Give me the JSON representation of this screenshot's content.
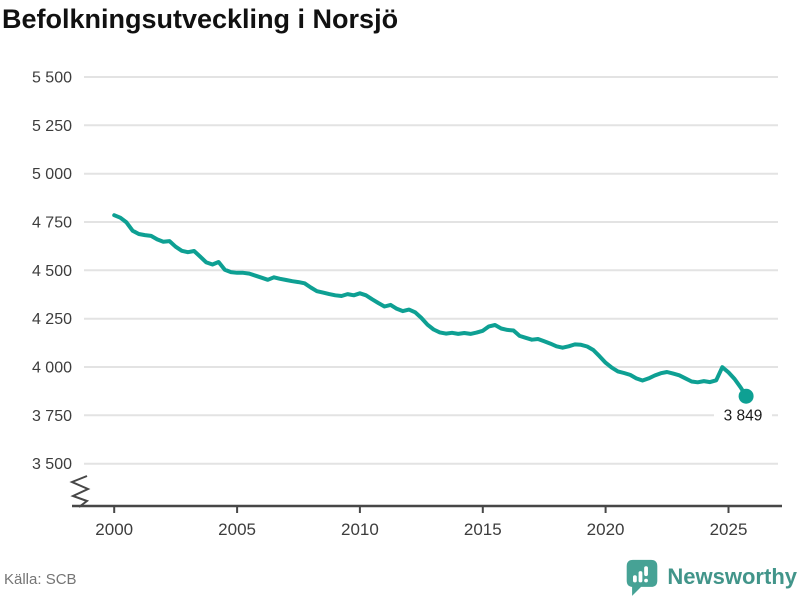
{
  "title": "Befolkningsutveckling i Norsjö",
  "source": {
    "label": "Källa: SCB"
  },
  "branding": {
    "name": "Newsworthy",
    "icon": "newsworthy-speech-bubble-bar-chart-icon"
  },
  "colors": {
    "line": "#0EA093",
    "dot": "#0EA093",
    "grid": "#E3E3E3",
    "axis": "#474747",
    "axis_text": "#3D3D3D",
    "title_text": "#111111",
    "annotation_text": "#1A1A1A",
    "source_text": "#757575",
    "logo": "#46A295",
    "logo_text": "#42958A"
  },
  "chart_data": {
    "type": "line",
    "title": "Befolkningsutveckling i Norsjö",
    "xlabel": "",
    "ylabel": "",
    "grid": "horizontal",
    "legend": "none",
    "axis_break": true,
    "xlim": [
      2000,
      2025.75
    ],
    "ylim": [
      3500,
      5500
    ],
    "end_label": "3 849",
    "end_value": 3849,
    "yticks": [
      {
        "value": 5500,
        "label": "5 500"
      },
      {
        "value": 5250,
        "label": "5 250"
      },
      {
        "value": 5000,
        "label": "5 000"
      },
      {
        "value": 4750,
        "label": "4 750"
      },
      {
        "value": 4500,
        "label": "4 500"
      },
      {
        "value": 4250,
        "label": "4 250"
      },
      {
        "value": 4000,
        "label": "4 000"
      },
      {
        "value": 3750,
        "label": "3 750"
      },
      {
        "value": 3500,
        "label": "3 500"
      }
    ],
    "xticks": [
      {
        "value": 2000,
        "label": "2000"
      },
      {
        "value": 2005,
        "label": "2005"
      },
      {
        "value": 2010,
        "label": "2010"
      },
      {
        "value": 2015,
        "label": "2015"
      },
      {
        "value": 2020,
        "label": "2020"
      },
      {
        "value": 2025,
        "label": "2025"
      }
    ],
    "series": [
      {
        "x": [
          2000.0,
          2000.25,
          2000.5,
          2000.75,
          2001.0,
          2001.25,
          2001.5,
          2001.75,
          2002.0,
          2002.25,
          2002.5,
          2002.75,
          2003.0,
          2003.25,
          2003.5,
          2003.75,
          2004.0,
          2004.25,
          2004.5,
          2004.75,
          2005.0,
          2005.25,
          2005.5,
          2005.75,
          2006.0,
          2006.25,
          2006.5,
          2006.75,
          2007.0,
          2007.25,
          2007.5,
          2007.75,
          2008.0,
          2008.25,
          2008.5,
          2008.75,
          2009.0,
          2009.25,
          2009.5,
          2009.75,
          2010.0,
          2010.25,
          2010.5,
          2010.75,
          2011.0,
          2011.25,
          2011.5,
          2011.75,
          2012.0,
          2012.25,
          2012.5,
          2012.75,
          2013.0,
          2013.25,
          2013.5,
          2013.75,
          2014.0,
          2014.25,
          2014.5,
          2014.75,
          2015.0,
          2015.25,
          2015.5,
          2015.75,
          2016.0,
          2016.25,
          2016.5,
          2016.75,
          2017.0,
          2017.25,
          2017.5,
          2017.75,
          2018.0,
          2018.25,
          2018.5,
          2018.75,
          2019.0,
          2019.25,
          2019.5,
          2019.75,
          2020.0,
          2020.25,
          2020.5,
          2020.75,
          2021.0,
          2021.25,
          2021.5,
          2021.75,
          2022.0,
          2022.25,
          2022.5,
          2022.75,
          2023.0,
          2023.25,
          2023.5,
          2023.75,
          2024.0,
          2024.25,
          2024.5,
          2024.75,
          2025.0,
          2025.25,
          2025.5,
          2025.72
        ],
        "y": [
          4785,
          4772,
          4748,
          4705,
          4688,
          4682,
          4678,
          4660,
          4648,
          4651,
          4622,
          4601,
          4594,
          4600,
          4571,
          4541,
          4530,
          4543,
          4503,
          4491,
          4487,
          4487,
          4483,
          4472,
          4462,
          4451,
          4464,
          4456,
          4450,
          4444,
          4439,
          4433,
          4411,
          4392,
          4385,
          4377,
          4371,
          4367,
          4377,
          4371,
          4381,
          4371,
          4350,
          4331,
          4313,
          4321,
          4301,
          4289,
          4297,
          4283,
          4254,
          4219,
          4194,
          4179,
          4173,
          4177,
          4171,
          4176,
          4171,
          4178,
          4187,
          4210,
          4217,
          4199,
          4192,
          4189,
          4161,
          4151,
          4141,
          4145,
          4133,
          4121,
          4107,
          4100,
          4107,
          4117,
          4115,
          4106,
          4088,
          4056,
          4022,
          3997,
          3977,
          3969,
          3959,
          3941,
          3930,
          3941,
          3956,
          3968,
          3974,
          3966,
          3957,
          3941,
          3925,
          3921,
          3927,
          3922,
          3931,
          3999,
          3972,
          3938,
          3894,
          3849
        ]
      }
    ]
  }
}
